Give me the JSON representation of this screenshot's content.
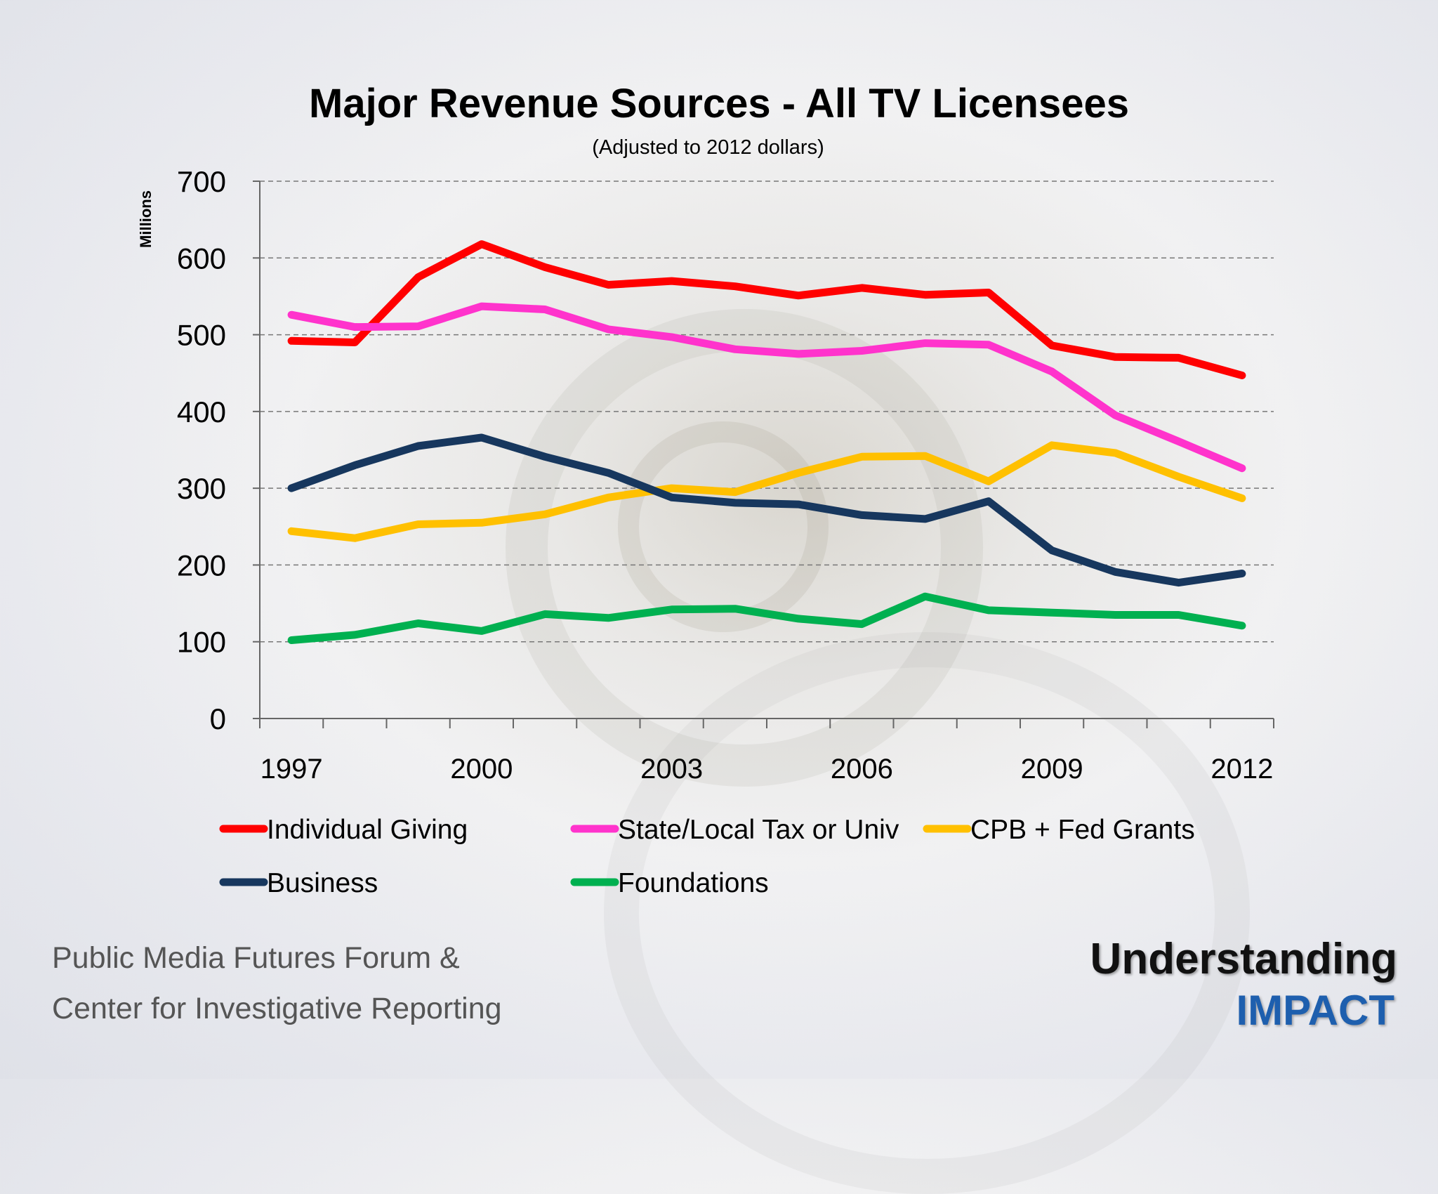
{
  "chart_data": {
    "type": "line",
    "title": "Major Revenue Sources -  All TV Licensees",
    "subtitle": "(Adjusted to 2012 dollars)",
    "ylabel": "Millions",
    "xlabel": "",
    "ylim": [
      0,
      700
    ],
    "yticks": [
      0,
      100,
      200,
      300,
      400,
      500,
      600,
      700
    ],
    "xticks": [
      "1997",
      "2000",
      "2003",
      "2006",
      "2009",
      "2012"
    ],
    "x": [
      1997,
      1998,
      1999,
      2000,
      2001,
      2002,
      2003,
      2004,
      2005,
      2006,
      2007,
      2008,
      2009,
      2010,
      2011,
      2012
    ],
    "grid": "horizontal dashed",
    "legend_position": "bottom",
    "series": [
      {
        "name": "Individual Giving",
        "color": "#ff0000",
        "values": [
          492,
          490,
          575,
          618,
          588,
          565,
          570,
          563,
          551,
          561,
          552,
          555,
          486,
          471,
          470,
          447
        ]
      },
      {
        "name": "State/Local Tax or Univ",
        "color": "#ff33cc",
        "values": [
          526,
          510,
          511,
          537,
          533,
          507,
          497,
          481,
          475,
          479,
          489,
          487,
          452,
          395,
          361,
          326
        ]
      },
      {
        "name": "CPB + Fed Grants",
        "color": "#ffc000",
        "values": [
          244,
          235,
          253,
          255,
          266,
          288,
          300,
          295,
          320,
          341,
          342,
          309,
          356,
          346,
          315,
          287
        ]
      },
      {
        "name": "Business",
        "color": "#17375e",
        "values": [
          300,
          330,
          355,
          366,
          341,
          320,
          288,
          281,
          279,
          265,
          260,
          283,
          219,
          191,
          177,
          189
        ]
      },
      {
        "name": "Foundations",
        "color": "#00b050",
        "values": [
          102,
          109,
          124,
          114,
          136,
          131,
          142,
          143,
          130,
          123,
          159,
          141,
          138,
          135,
          135,
          121
        ]
      }
    ]
  },
  "footer": {
    "left_line1": "Public Media Futures Forum &",
    "left_line2": "Center for Investigative Reporting",
    "brand_line1": "Understanding",
    "brand_line2": "IMPACT"
  }
}
